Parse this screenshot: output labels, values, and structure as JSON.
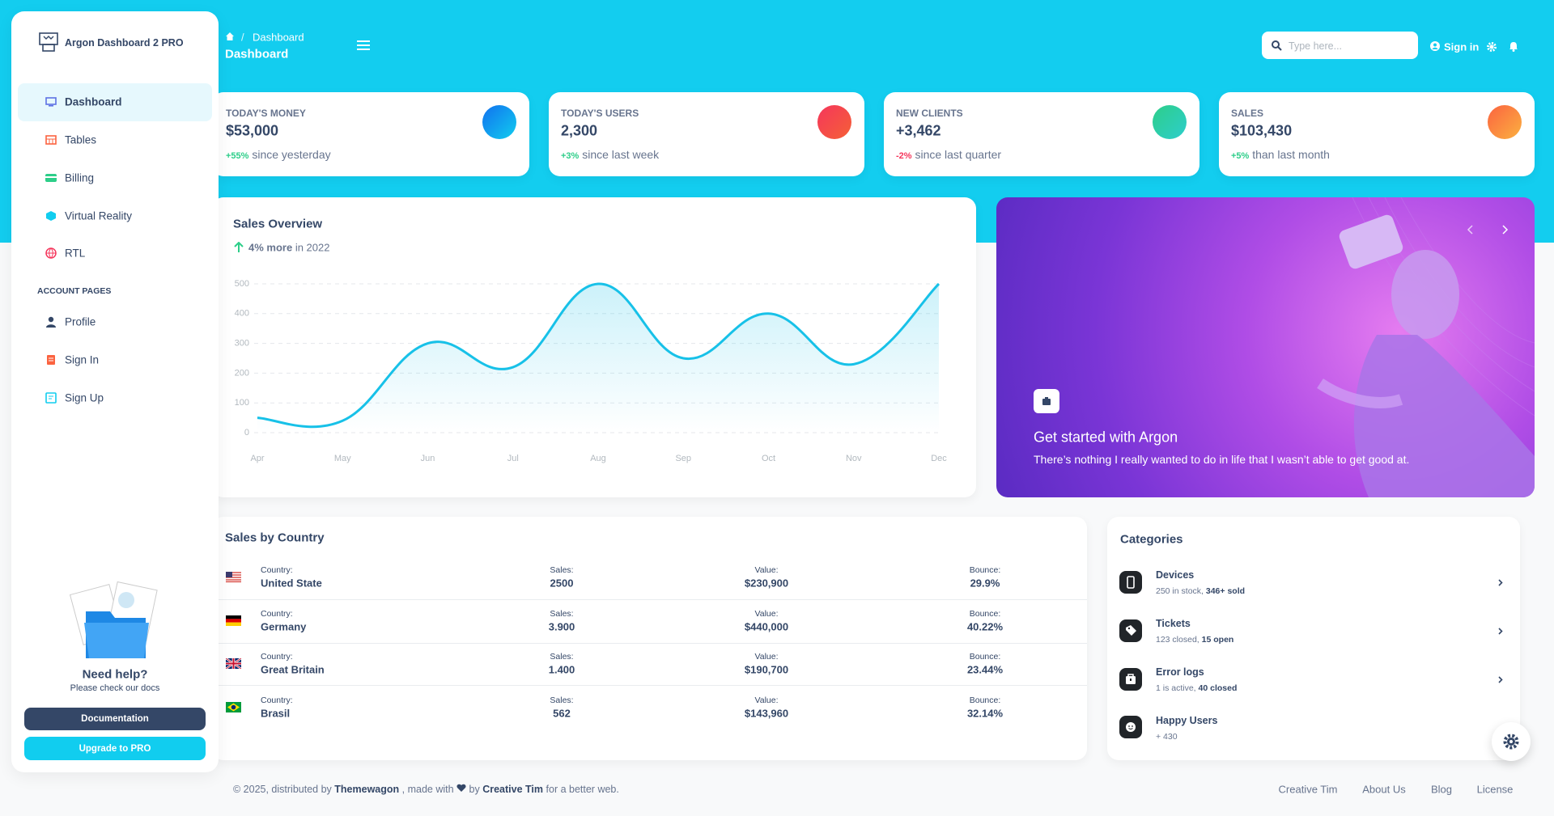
{
  "sidebar": {
    "brand": "Argon Dashboard 2 PRO",
    "nav": [
      "Dashboard",
      "Tables",
      "Billing",
      "Virtual Reality",
      "RTL"
    ],
    "section": "ACCOUNT PAGES",
    "account_nav": [
      "Profile",
      "Sign In",
      "Sign Up"
    ],
    "help": {
      "title": "Need help?",
      "text": "Please check our docs"
    },
    "buttons": [
      "Documentation",
      "Upgrade to PRO"
    ]
  },
  "header": {
    "breadcrumb": "Dashboard",
    "title": "Dashboard",
    "search_placeholder": "Type here...",
    "sign_in": "Sign in"
  },
  "stats": [
    {
      "label": "TODAY'S MONEY",
      "value": "$53,000",
      "change": "+55%",
      "note": "since yesterday"
    },
    {
      "label": "TODAY'S USERS",
      "value": "2,300",
      "change": "+3%",
      "note": "since last week"
    },
    {
      "label": "NEW CLIENTS",
      "value": "+3,462",
      "change": "-2%",
      "note": "since last quarter"
    },
    {
      "label": "SALES",
      "value": "$103,430",
      "change": "+5%",
      "note": "than last month"
    }
  ],
  "sales_overview": {
    "title": "Sales Overview",
    "highlight": "4% more",
    "note": "in 2022",
    "chart": {
      "type": "line",
      "categories": [
        "Apr",
        "May",
        "Jun",
        "Jul",
        "Aug",
        "Sep",
        "Oct",
        "Nov",
        "Dec"
      ],
      "values": [
        50,
        40,
        300,
        220,
        500,
        250,
        400,
        230,
        500
      ],
      "color": "#17c1e8",
      "ylim": [
        0,
        500
      ],
      "yticks": [
        0,
        100,
        200,
        300,
        400,
        500
      ],
      "grid": true
    }
  },
  "carousel": {
    "title": "Get started with Argon",
    "text": "There’s nothing I really wanted to do in life that I wasn’t able to get good at."
  },
  "sales_by_country": {
    "title": "Sales by Country",
    "headers": [
      "Country:",
      "Sales:",
      "Value:",
      "Bounce:"
    ],
    "rows": [
      [
        "United State",
        "2500",
        "$230,900",
        "29.9%"
      ],
      [
        "Germany",
        "3.900",
        "$440,000",
        "40.22%"
      ],
      [
        "Great Britain",
        "1.400",
        "$190,700",
        "23.44%"
      ],
      [
        "Brasil",
        "562",
        "$143,960",
        "32.14%"
      ]
    ]
  },
  "categories": {
    "title": "Categories",
    "items": [
      {
        "name": "Devices",
        "detail": "250 in stock,",
        "highlight": "346+ sold"
      },
      {
        "name": "Tickets",
        "detail": "123 closed,",
        "highlight": "15 open"
      },
      {
        "name": "Error logs",
        "detail": "1 is active,",
        "highlight": "40 closed"
      },
      {
        "name": "Happy Users",
        "detail": "+ 430"
      }
    ]
  },
  "footer": {
    "copyright": "© 2025, distributed by",
    "distributor": "Themewagon",
    "made_with": ", made with",
    "by": "by",
    "author": "Creative Tim",
    "tail": "for a better web.",
    "links": [
      "Creative Tim",
      "About Us",
      "Blog",
      "License"
    ]
  }
}
